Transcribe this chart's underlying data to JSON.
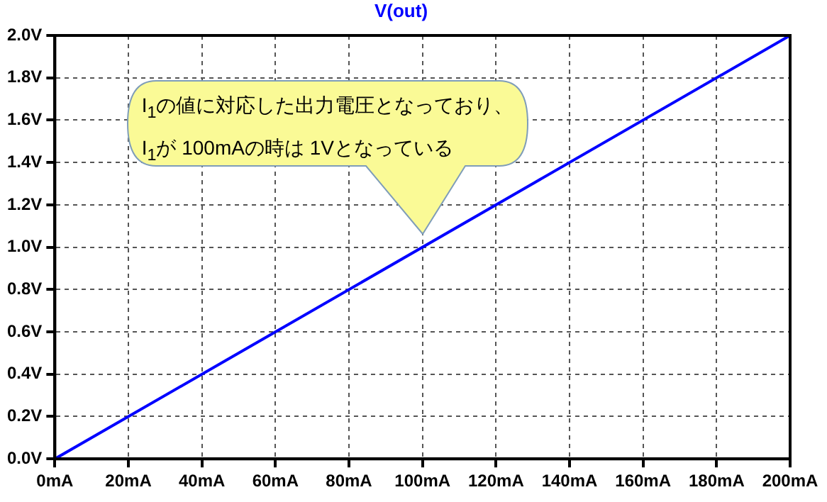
{
  "chart_data": {
    "type": "line",
    "series": [
      {
        "name": "V(out)",
        "color": "#0000ff",
        "x": [
          0,
          200
        ],
        "values": [
          0,
          2
        ]
      }
    ],
    "xlim": [
      0,
      200
    ],
    "xticks": [
      {
        "value": 0,
        "label": "0mA"
      },
      {
        "value": 20,
        "label": "20mA"
      },
      {
        "value": 40,
        "label": "40mA"
      },
      {
        "value": 60,
        "label": "60mA"
      },
      {
        "value": 80,
        "label": "80mA"
      },
      {
        "value": 100,
        "label": "100mA"
      },
      {
        "value": 120,
        "label": "120mA"
      },
      {
        "value": 140,
        "label": "140mA"
      },
      {
        "value": 160,
        "label": "160mA"
      },
      {
        "value": 180,
        "label": "180mA"
      },
      {
        "value": 200,
        "label": "200mA"
      }
    ],
    "ylim": [
      0,
      2
    ],
    "yticks": [
      {
        "value": 0,
        "label": "0.0V"
      },
      {
        "value": 0.2,
        "label": "0.2V"
      },
      {
        "value": 0.4,
        "label": "0.4V"
      },
      {
        "value": 0.6,
        "label": "0.6V"
      },
      {
        "value": 0.8,
        "label": "0.8V"
      },
      {
        "value": 1,
        "label": "1.0V"
      },
      {
        "value": 1.2,
        "label": "1.2V"
      },
      {
        "value": 1.4,
        "label": "1.4V"
      },
      {
        "value": 1.6,
        "label": "1.6V"
      },
      {
        "value": 1.8,
        "label": "1.8V"
      },
      {
        "value": 2,
        "label": "2.0V"
      }
    ],
    "grid": true,
    "legend": "top",
    "marker": "none",
    "line_style": "solid",
    "annotations": [
      "I$_{1}$の値に対応した出力電圧となっており、I$_{1}$が 100mAの時は 1Vとなっている"
    ]
  }
}
